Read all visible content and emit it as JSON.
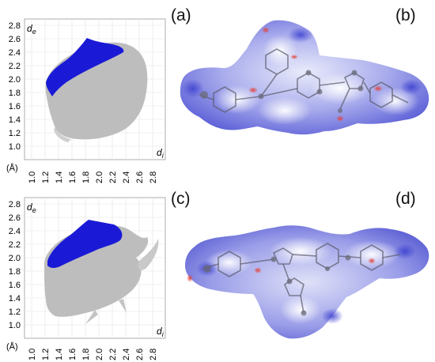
{
  "panels": {
    "a": "(a)",
    "b": "(b)",
    "c": "(c)",
    "d": "(d)"
  },
  "plots": [
    {
      "y_label": "d",
      "y_label_sub": "e",
      "x_label": "d",
      "x_label_sub": "i",
      "unit": "(Å)",
      "y_ticks": [
        "2.8",
        "2.6",
        "2.4",
        "2.2",
        "2.0",
        "1.8",
        "1.6",
        "1.4",
        "1.2",
        "1.0"
      ],
      "x_ticks": [
        "1.0",
        "1.2",
        "1.4",
        "1.6",
        "1.8",
        "2.0",
        "2.2",
        "2.4",
        "2.6",
        "2.8"
      ]
    },
    {
      "y_label": "d",
      "y_label_sub": "e",
      "x_label": "d",
      "x_label_sub": "i",
      "unit": "(Å)",
      "y_ticks": [
        "2.8",
        "2.6",
        "2.4",
        "2.2",
        "2.0",
        "1.8",
        "1.6",
        "1.4",
        "1.2",
        "1.0"
      ],
      "x_ticks": [
        "1.0",
        "1.2",
        "1.4",
        "1.6",
        "1.8",
        "2.0",
        "2.2",
        "2.4",
        "2.6",
        "2.8"
      ]
    }
  ],
  "colors": {
    "highlight": "#1a1ad6",
    "full_plot": "#bdbdbd",
    "grid": "#e3e3e3",
    "surface_blue": "#6a6ee0",
    "surface_white": "#eef0fb",
    "surface_red": "#e2433a"
  }
}
